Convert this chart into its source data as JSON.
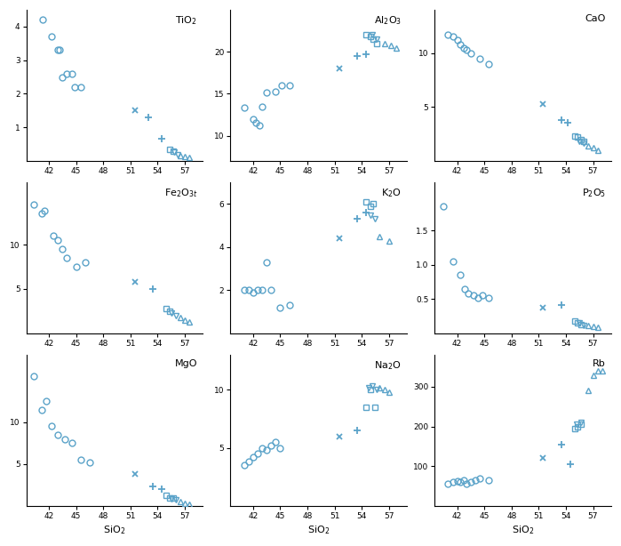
{
  "color": "#5ba3c9",
  "bg_color": "#ffffff",
  "sio2_xlabel": "SiO$_2$",
  "xticks": [
    42,
    45,
    48,
    51,
    54,
    57
  ],
  "panels": [
    {
      "title": "TiO$_2$",
      "series": {
        "circle": {
          "x": [
            41.3,
            42.3,
            43.0,
            43.2,
            43.5,
            44.0,
            44.5,
            44.8,
            45.5
          ],
          "y": [
            4.2,
            3.7,
            3.3,
            3.3,
            2.5,
            2.6,
            2.6,
            2.2,
            2.2
          ]
        },
        "cross": {
          "x": [
            51.5
          ],
          "y": [
            1.5
          ]
        },
        "plus": {
          "x": [
            53.0,
            54.5
          ],
          "y": [
            1.3,
            0.65
          ]
        },
        "square": {
          "x": [
            55.3,
            55.7
          ],
          "y": [
            0.35,
            0.28
          ]
        },
        "triangle_down": {
          "x": [
            55.8,
            56.2
          ],
          "y": [
            0.25,
            0.18
          ]
        },
        "triangle_up": {
          "x": [
            56.5,
            57.0,
            57.5
          ],
          "y": [
            0.15,
            0.13,
            0.1
          ]
        }
      },
      "ylim": [
        0,
        4.5
      ],
      "yticks": [
        1,
        2,
        3,
        4
      ],
      "xlim": [
        39.5,
        59
      ]
    },
    {
      "title": "Al$_2$O$_3$",
      "series": {
        "circle": {
          "x": [
            41.0,
            42.0,
            42.3,
            42.7,
            43.0,
            43.5,
            44.5,
            45.2,
            46.0
          ],
          "y": [
            13.3,
            12.0,
            11.5,
            11.2,
            13.5,
            15.2,
            15.3,
            16.0,
            16.0
          ]
        },
        "cross": {
          "x": [
            51.5
          ],
          "y": [
            18.0
          ]
        },
        "plus": {
          "x": [
            53.5,
            54.5
          ],
          "y": [
            19.5,
            19.7
          ]
        },
        "square": {
          "x": [
            54.5,
            55.0,
            55.3,
            55.7
          ],
          "y": [
            22.0,
            21.8,
            21.5,
            21.0
          ]
        },
        "triangle_down": {
          "x": [
            55.2,
            55.7
          ],
          "y": [
            22.0,
            21.5
          ]
        },
        "triangle_up": {
          "x": [
            56.5,
            57.2,
            57.8
          ],
          "y": [
            21.0,
            20.8,
            20.5
          ]
        }
      },
      "ylim": [
        7,
        25
      ],
      "yticks": [
        10,
        15,
        20
      ],
      "xlim": [
        39.5,
        59
      ]
    },
    {
      "title": "CaO",
      "series": {
        "circle": {
          "x": [
            41.0,
            41.5,
            42.0,
            42.3,
            42.7,
            43.0,
            43.5,
            44.5,
            45.5
          ],
          "y": [
            11.7,
            11.5,
            11.2,
            10.8,
            10.5,
            10.3,
            10.0,
            9.5,
            9.0
          ]
        },
        "cross": {
          "x": [
            51.5
          ],
          "y": [
            5.3
          ]
        },
        "plus": {
          "x": [
            53.5,
            54.2
          ],
          "y": [
            3.8,
            3.5
          ]
        },
        "square": {
          "x": [
            55.0,
            55.3,
            55.7,
            56.0
          ],
          "y": [
            2.3,
            2.2,
            2.0,
            1.8
          ]
        },
        "triangle_down": {
          "x": [
            55.5,
            56.0
          ],
          "y": [
            1.8,
            1.6
          ]
        },
        "triangle_up": {
          "x": [
            56.5,
            57.0,
            57.5
          ],
          "y": [
            1.4,
            1.2,
            1.0
          ]
        }
      },
      "ylim": [
        0,
        14
      ],
      "yticks": [
        5,
        10
      ],
      "xlim": [
        39.5,
        59
      ]
    },
    {
      "title": "Fe$_2$O$_{3t}$",
      "series": {
        "circle": {
          "x": [
            40.3,
            41.2,
            41.5,
            42.5,
            43.0,
            43.5,
            44.0,
            45.0,
            46.0
          ],
          "y": [
            14.5,
            13.5,
            13.8,
            11.0,
            10.5,
            9.5,
            8.5,
            7.5,
            8.0
          ]
        },
        "cross": {
          "x": [
            51.5
          ],
          "y": [
            5.8
          ]
        },
        "plus": {
          "x": [
            53.5
          ],
          "y": [
            5.0
          ]
        },
        "square": {
          "x": [
            55.0,
            55.3
          ],
          "y": [
            2.8,
            2.5
          ]
        },
        "triangle_down": {
          "x": [
            55.5,
            56.0
          ],
          "y": [
            2.3,
            2.0
          ]
        },
        "triangle_up": {
          "x": [
            56.5,
            57.0,
            57.5
          ],
          "y": [
            1.8,
            1.5,
            1.3
          ]
        }
      },
      "ylim": [
        0,
        17
      ],
      "yticks": [
        5,
        10
      ],
      "xlim": [
        39.5,
        59
      ]
    },
    {
      "title": "K$_2$O",
      "series": {
        "circle": {
          "x": [
            41.0,
            41.5,
            42.0,
            42.5,
            43.0,
            43.5,
            44.0,
            45.0,
            46.0
          ],
          "y": [
            2.0,
            2.0,
            1.9,
            2.0,
            2.0,
            3.3,
            2.0,
            1.2,
            1.3
          ]
        },
        "cross": {
          "x": [
            51.5
          ],
          "y": [
            4.4
          ]
        },
        "plus": {
          "x": [
            53.5,
            54.5
          ],
          "y": [
            5.3,
            5.6
          ]
        },
        "square": {
          "x": [
            54.5,
            55.0,
            55.3
          ],
          "y": [
            6.1,
            5.9,
            6.0
          ]
        },
        "triangle_down": {
          "x": [
            55.0,
            55.5
          ],
          "y": [
            5.5,
            5.3
          ]
        },
        "triangle_up": {
          "x": [
            56.0,
            57.0
          ],
          "y": [
            4.5,
            4.3
          ]
        }
      },
      "ylim": [
        0,
        7
      ],
      "yticks": [
        2,
        4,
        6
      ],
      "xlim": [
        39.5,
        59
      ]
    },
    {
      "title": "P$_2$O$_5$",
      "series": {
        "circle": {
          "x": [
            40.5,
            41.5,
            42.3,
            42.8,
            43.2,
            43.8,
            44.3,
            44.8,
            45.5
          ],
          "y": [
            1.85,
            1.05,
            0.85,
            0.65,
            0.58,
            0.55,
            0.52,
            0.55,
            0.52
          ]
        },
        "cross": {
          "x": [
            51.5
          ],
          "y": [
            0.38
          ]
        },
        "plus": {
          "x": [
            53.5
          ],
          "y": [
            0.42
          ]
        },
        "square": {
          "x": [
            55.0,
            55.3,
            55.7
          ],
          "y": [
            0.18,
            0.15,
            0.13
          ]
        },
        "triangle_down": {
          "x": [
            55.5,
            56.0
          ],
          "y": [
            0.15,
            0.12
          ]
        },
        "triangle_up": {
          "x": [
            56.5,
            57.0,
            57.5
          ],
          "y": [
            0.12,
            0.1,
            0.09
          ]
        }
      },
      "ylim": [
        0,
        2.2
      ],
      "yticks": [
        0.5,
        1.0,
        1.5
      ],
      "xlim": [
        39.5,
        59
      ]
    },
    {
      "title": "MgO",
      "series": {
        "circle": {
          "x": [
            40.3,
            41.2,
            41.7,
            42.3,
            43.0,
            43.8,
            44.5,
            45.5,
            46.5
          ],
          "y": [
            15.5,
            11.5,
            12.5,
            9.5,
            8.5,
            8.0,
            7.5,
            5.5,
            5.2
          ]
        },
        "cross": {
          "x": [
            51.5
          ],
          "y": [
            3.8
          ]
        },
        "plus": {
          "x": [
            53.5,
            54.5
          ],
          "y": [
            2.3,
            2.0
          ]
        },
        "square": {
          "x": [
            55.0,
            55.3,
            55.7
          ],
          "y": [
            1.3,
            1.0,
            0.9
          ]
        },
        "triangle_down": {
          "x": [
            55.5,
            56.0
          ],
          "y": [
            0.8,
            0.7
          ]
        },
        "triangle_up": {
          "x": [
            56.5,
            57.0,
            57.5
          ],
          "y": [
            0.5,
            0.3,
            0.2
          ]
        }
      },
      "ylim": [
        0,
        18
      ],
      "yticks": [
        5,
        10
      ],
      "xlim": [
        39.5,
        59
      ]
    },
    {
      "title": "Na$_2$O",
      "series": {
        "circle": {
          "x": [
            41.0,
            41.5,
            42.0,
            42.5,
            43.0,
            43.5,
            44.0,
            44.5,
            45.0
          ],
          "y": [
            3.5,
            3.8,
            4.2,
            4.5,
            5.0,
            4.8,
            5.2,
            5.5,
            5.0
          ]
        },
        "cross": {
          "x": [
            51.5
          ],
          "y": [
            6.0
          ]
        },
        "plus": {
          "x": [
            53.5
          ],
          "y": [
            6.5
          ]
        },
        "square": {
          "x": [
            54.5,
            55.0,
            55.5
          ],
          "y": [
            8.5,
            10.0,
            8.5
          ]
        },
        "triangle_down": {
          "x": [
            54.8,
            55.2,
            55.7
          ],
          "y": [
            10.2,
            10.3,
            10.0
          ]
        },
        "triangle_up": {
          "x": [
            56.0,
            56.5,
            57.0
          ],
          "y": [
            10.2,
            10.0,
            9.8
          ]
        }
      },
      "ylim": [
        0,
        13
      ],
      "yticks": [
        5,
        10
      ],
      "xlim": [
        39.5,
        59
      ]
    },
    {
      "title": "Rb",
      "series": {
        "circle": {
          "x": [
            41.0,
            41.5,
            42.0,
            42.3,
            42.7,
            43.0,
            43.5,
            44.0,
            44.5,
            45.5
          ],
          "y": [
            55,
            60,
            62,
            60,
            65,
            55,
            60,
            65,
            70,
            65
          ]
        },
        "cross": {
          "x": [
            51.5
          ],
          "y": [
            120
          ]
        },
        "plus": {
          "x": [
            53.5,
            54.5
          ],
          "y": [
            155,
            105
          ]
        },
        "square": {
          "x": [
            55.0,
            55.3,
            55.7
          ],
          "y": [
            195,
            200,
            205
          ]
        },
        "triangle_down": {
          "x": [
            55.2,
            55.7
          ],
          "y": [
            205,
            210
          ]
        },
        "triangle_up": {
          "x": [
            56.5,
            57.0,
            57.5,
            58.0
          ],
          "y": [
            290,
            330,
            340,
            340
          ]
        }
      },
      "ylim": [
        0,
        380
      ],
      "yticks": [
        100,
        200,
        300
      ],
      "xlim": [
        39.5,
        59
      ]
    }
  ]
}
